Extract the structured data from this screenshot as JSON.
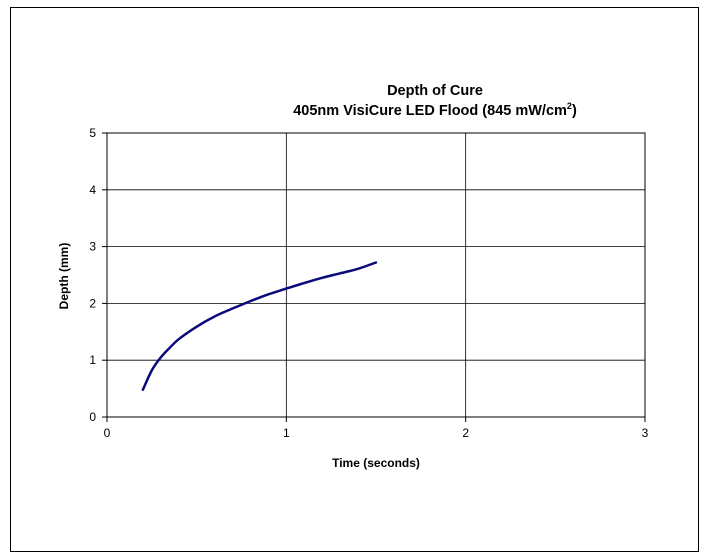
{
  "chart_data": {
    "type": "line",
    "title": "Depth of Cure",
    "subtitle_prefix": "405nm VisiCure LED Flood (845 mW/cm",
    "subtitle_sup": "2",
    "subtitle_suffix": ")",
    "xlabel": "Time (seconds)",
    "ylabel": "Depth (mm)",
    "xlim": [
      0,
      3
    ],
    "ylim": [
      0,
      5
    ],
    "xticks": [
      "0",
      "1",
      "2",
      "3"
    ],
    "yticks": [
      "0",
      "1",
      "2",
      "3",
      "4",
      "5"
    ],
    "grid": true,
    "series": [
      {
        "color": "#0a0a7a",
        "x": [
          0.2,
          0.25,
          0.3,
          0.35,
          0.4,
          0.5,
          0.6,
          0.7,
          0.8,
          0.9,
          1.0,
          1.1,
          1.2,
          1.3,
          1.4,
          1.5
        ],
        "y": [
          0.48,
          0.82,
          1.05,
          1.22,
          1.37,
          1.59,
          1.77,
          1.91,
          2.04,
          2.16,
          2.26,
          2.36,
          2.45,
          2.53,
          2.61,
          2.72
        ]
      }
    ]
  }
}
